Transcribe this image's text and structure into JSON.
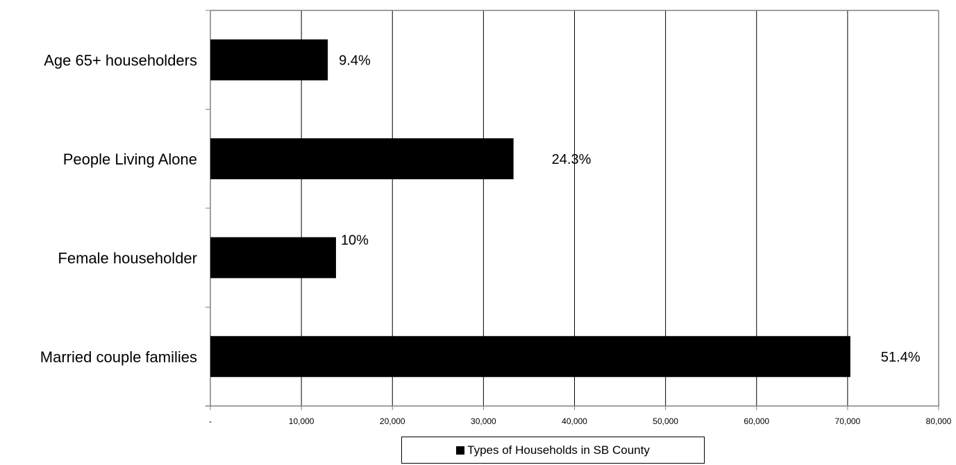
{
  "chart_data": {
    "type": "bar",
    "orientation": "horizontal",
    "categories": [
      "Married couple families",
      "Female householder",
      "People Living Alone",
      "Age 65+ householders"
    ],
    "series": [
      {
        "name": "Types of Households in SB County",
        "values": [
          70300,
          13800,
          33300,
          12900
        ],
        "labels": [
          "51.4%",
          "10%",
          "24.3%",
          "9.4%"
        ]
      }
    ],
    "xlim": [
      0,
      80000
    ],
    "xticks": [
      0,
      10000,
      20000,
      30000,
      40000,
      50000,
      60000,
      70000,
      80000
    ],
    "xtick_labels": [
      "-",
      "10,000",
      "20,000",
      "30,000",
      "40,000",
      "50,000",
      "60,000",
      "70,000",
      "80,000"
    ],
    "grid": "vertical",
    "legend_position": "bottom",
    "bar_color": "#000000"
  }
}
